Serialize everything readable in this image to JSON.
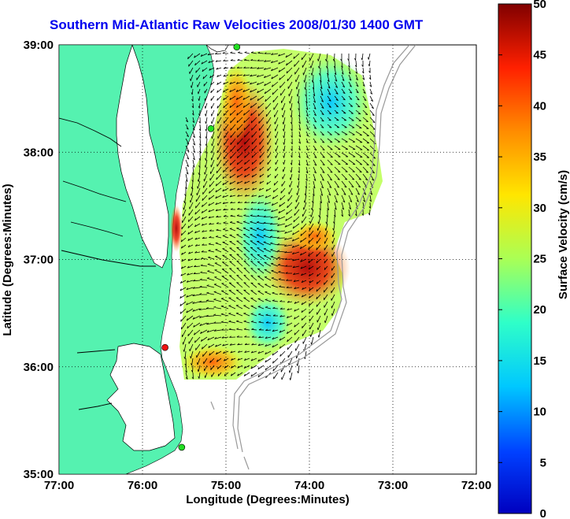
{
  "title": "Southern Mid-Atlantic Raw Velocities 2008/01/30 1400 GMT",
  "map": {
    "xlabel": "Longitude (Degrees:Minutes)",
    "ylabel": "Latitude (Degrees:Minutes)",
    "lon_ticks": [
      "77:00",
      "76:00",
      "75:00",
      "74:00",
      "73:00",
      "72:00"
    ],
    "lat_ticks": [
      "39:00",
      "38:00",
      "37:00",
      "36:00",
      "35:00"
    ],
    "lon_range": [
      -77,
      -72
    ],
    "lat_range": [
      35,
      39
    ],
    "colors": {
      "land": "#55f2b0",
      "water": "#ffffff",
      "coast": "#000000",
      "bathymetry": "#999999"
    },
    "station_markers": [
      {
        "color": "#22dd22",
        "lon": -74.87,
        "lat": 38.98
      },
      {
        "color": "#22dd22",
        "lon": -75.18,
        "lat": 38.22
      },
      {
        "color": "#ee1111",
        "lon": -75.73,
        "lat": 36.18
      },
      {
        "color": "#22dd22",
        "lon": -75.53,
        "lat": 35.25
      }
    ]
  },
  "colorbar": {
    "label": "Surface Velocity (cm/s)",
    "ticks": [
      "0",
      "5",
      "10",
      "15",
      "20",
      "25",
      "30",
      "35",
      "40",
      "45",
      "50"
    ],
    "range": [
      0,
      50
    ],
    "colormap": "jet"
  }
}
